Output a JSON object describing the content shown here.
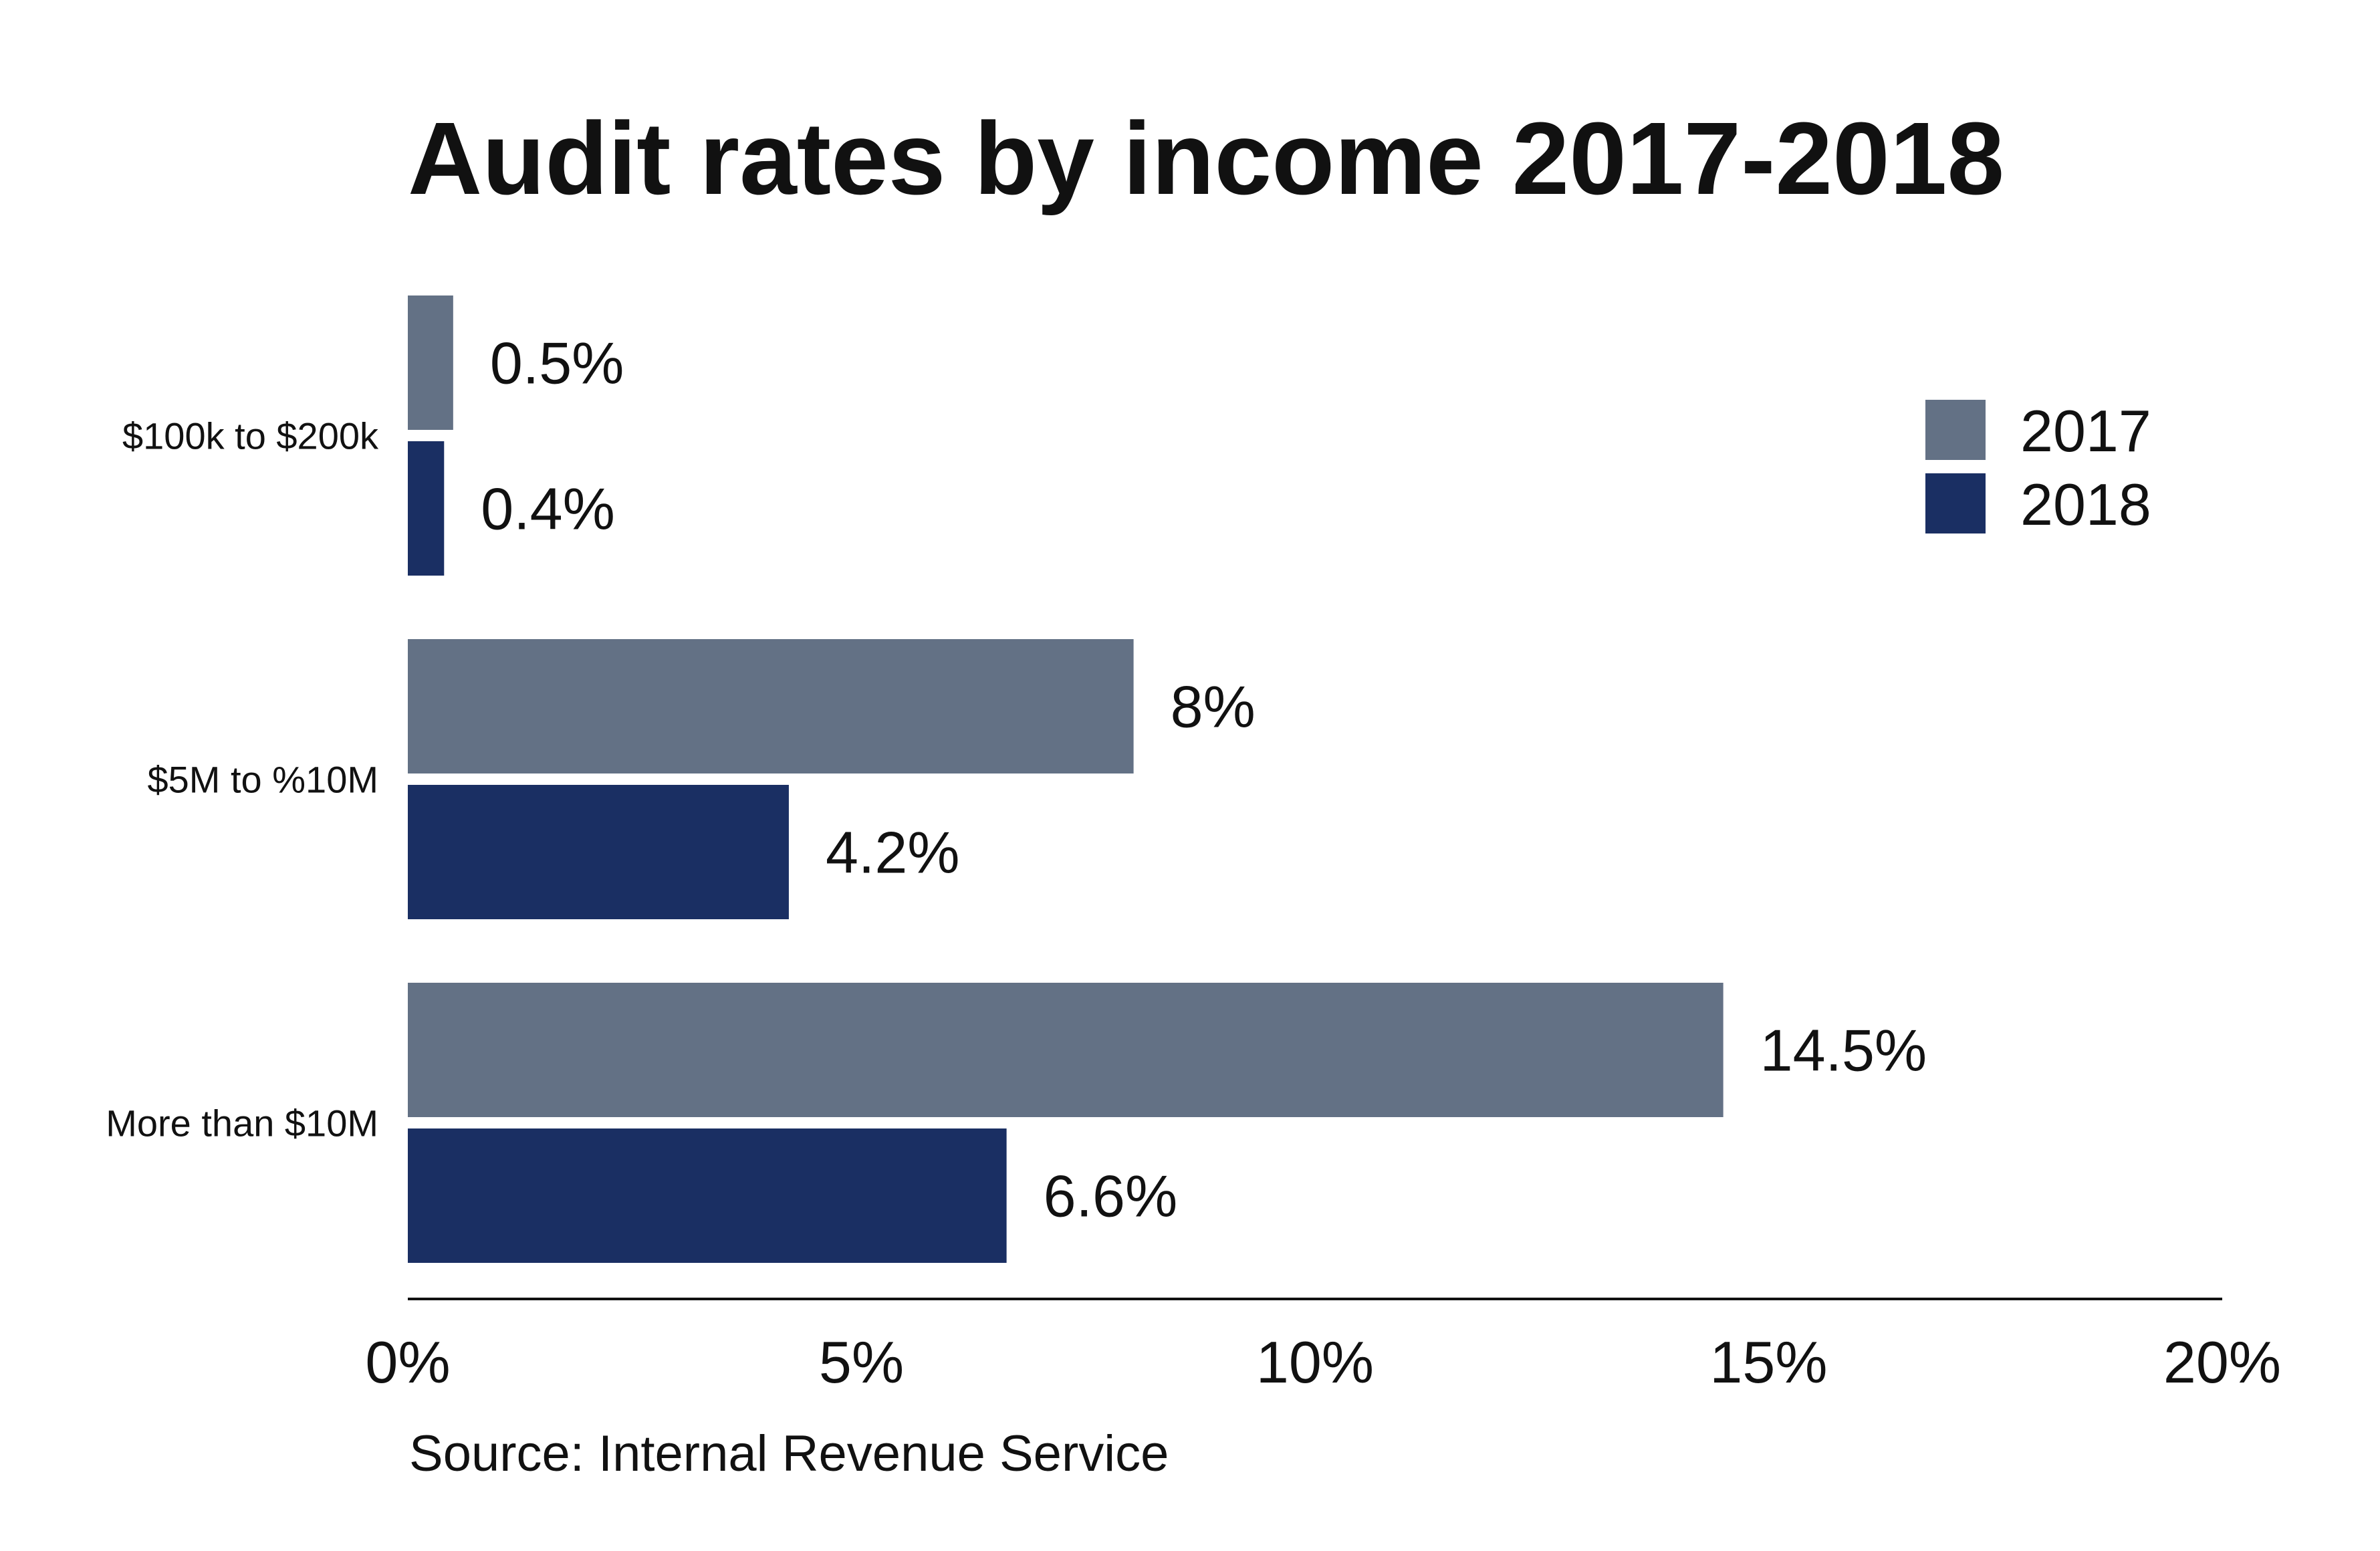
{
  "chart_data": {
    "type": "bar",
    "orientation": "horizontal",
    "title": "Audit rates by income 2017-2018",
    "categories": [
      "$100k to $200k",
      "$5M to %10M",
      "More than $10M"
    ],
    "series": [
      {
        "name": "2017",
        "color": "#637185",
        "values": [
          0.5,
          8,
          14.5
        ],
        "labels": [
          "0.5%",
          "8%",
          "14.5%"
        ]
      },
      {
        "name": "2018",
        "color": "#1a2f63",
        "values": [
          0.4,
          4.2,
          6.6
        ],
        "labels": [
          "0.4%",
          "4.2%",
          "6.6%"
        ]
      }
    ],
    "xlim": [
      0,
      20
    ],
    "x_ticks": [
      0,
      5,
      10,
      15,
      20
    ],
    "x_tick_labels": [
      "0%",
      "5%",
      "10%",
      "15%",
      "20%"
    ],
    "xlabel": "",
    "ylabel": "",
    "grid": false,
    "legend_position": "top-right",
    "source": "Source: Internal Revenue Service"
  }
}
